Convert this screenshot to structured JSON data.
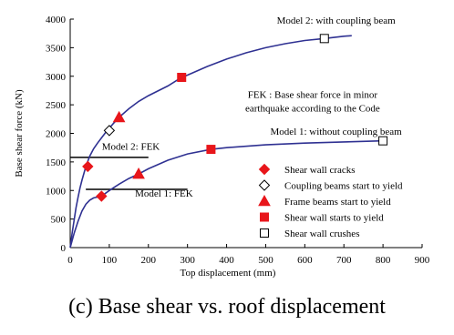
{
  "caption": "(c) Base shear vs. roof displacement",
  "chart_data": {
    "type": "line",
    "title": "",
    "xlabel": "Top displacement  (mm)",
    "ylabel": "Base shear force (kN)",
    "xlim": [
      0,
      900
    ],
    "ylim": [
      0,
      4000
    ],
    "xticks": [
      0,
      100,
      200,
      300,
      400,
      500,
      600,
      700,
      800,
      900
    ],
    "yticks": [
      0,
      500,
      1000,
      1500,
      2000,
      2500,
      3000,
      3500,
      4000
    ],
    "grid": false,
    "colors": {
      "curve": "#2f3192",
      "marker": "#e8161b",
      "axis": "#000000"
    },
    "series": [
      {
        "label": "Model 2: with coupling beam",
        "x": [
          0,
          5,
          10,
          15,
          20,
          25,
          30,
          40,
          50,
          60,
          70,
          80,
          90,
          100,
          110,
          125,
          150,
          175,
          200,
          250,
          285,
          300,
          350,
          400,
          450,
          500,
          550,
          600,
          650,
          700,
          720
        ],
        "y": [
          0,
          250,
          480,
          700,
          880,
          1040,
          1180,
          1420,
          1600,
          1730,
          1830,
          1920,
          2010,
          2090,
          2170,
          2280,
          2430,
          2560,
          2660,
          2830,
          2980,
          3020,
          3170,
          3300,
          3410,
          3500,
          3570,
          3625,
          3660,
          3700,
          3710
        ]
      },
      {
        "label": "Model 1: without coupling beam",
        "x": [
          0,
          10,
          20,
          30,
          40,
          50,
          60,
          70,
          80,
          100,
          125,
          150,
          175,
          200,
          250,
          300,
          360,
          400,
          500,
          600,
          700,
          800
        ],
        "y": [
          0,
          250,
          460,
          640,
          760,
          830,
          870,
          885,
          900,
          1000,
          1110,
          1210,
          1290,
          1380,
          1530,
          1640,
          1720,
          1750,
          1800,
          1830,
          1850,
          1870
        ]
      }
    ],
    "markers": [
      {
        "kind": "diamond-filled",
        "x": 45,
        "y": 1420
      },
      {
        "kind": "diamond-filled",
        "x": 80,
        "y": 900
      },
      {
        "kind": "diamond-open",
        "x": 100,
        "y": 2050
      },
      {
        "kind": "triangle",
        "x": 125,
        "y": 2280
      },
      {
        "kind": "triangle",
        "x": 175,
        "y": 1290
      },
      {
        "kind": "square-filled",
        "x": 285,
        "y": 2980
      },
      {
        "kind": "square-filled",
        "x": 360,
        "y": 1720
      },
      {
        "kind": "square-open",
        "x": 650,
        "y": 3660
      },
      {
        "kind": "square-open",
        "x": 800,
        "y": 1870
      }
    ],
    "fek_lines": [
      {
        "label": "Model 2: FEK",
        "x_start": 0,
        "x_end": 200,
        "y": 1580
      },
      {
        "label": "Model 1: FEK",
        "x_start": 40,
        "x_end": 300,
        "y": 1020
      }
    ],
    "annotations": [
      {
        "text": "Model 2: with coupling beam",
        "x": 680,
        "y": 3920
      },
      {
        "text": "Model 1: without coupling beam",
        "x": 680,
        "y": 1980
      },
      {
        "text": "FEK : Base shear force in minor",
        "x": 620,
        "y": 2620
      },
      {
        "text": "earthquake according to the Code",
        "x": 620,
        "y": 2380
      },
      {
        "text": "Model 2: FEK",
        "x": 155,
        "y": 1710
      },
      {
        "text": "Model 1: FEK",
        "x": 240,
        "y": 890
      }
    ],
    "legend": {
      "position": "lower-right",
      "items": [
        {
          "kind": "diamond-filled",
          "label": "Shear wall cracks"
        },
        {
          "kind": "diamond-open",
          "label": "Coupling beams start to yield"
        },
        {
          "kind": "triangle",
          "label": "Frame beams start to yield"
        },
        {
          "kind": "square-filled",
          "label": "Shear wall starts to yield"
        },
        {
          "kind": "square-open",
          "label": "Shear wall crushes"
        }
      ]
    }
  }
}
